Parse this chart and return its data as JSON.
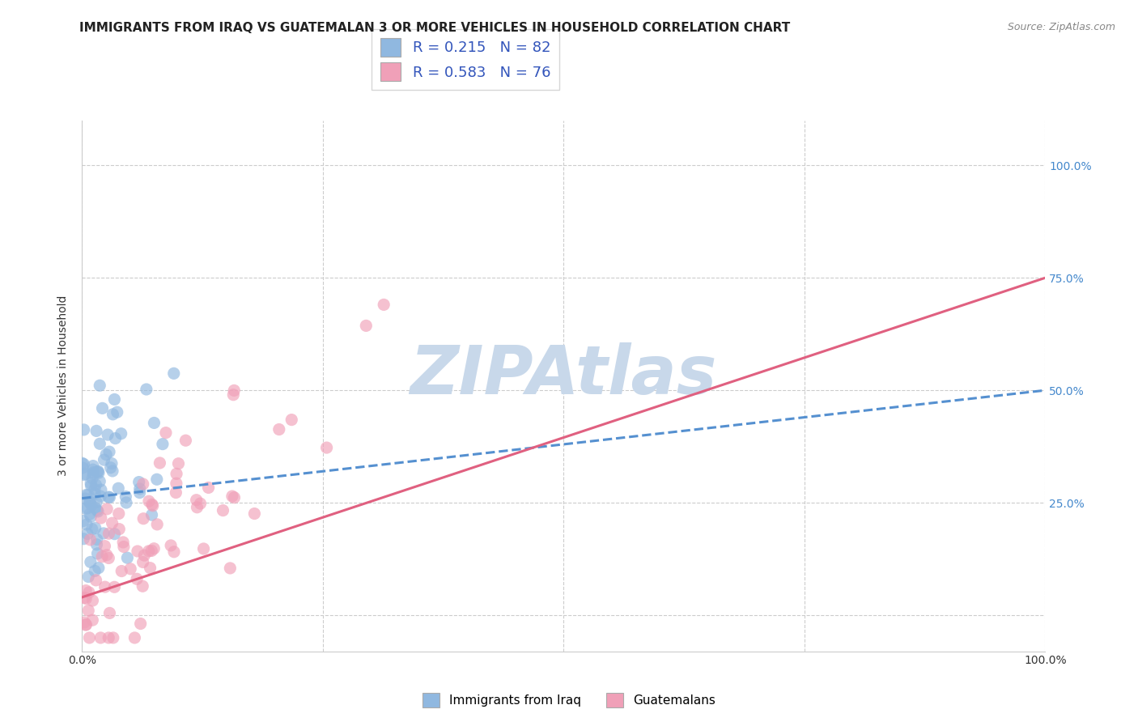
{
  "title": "IMMIGRANTS FROM IRAQ VS GUATEMALAN 3 OR MORE VEHICLES IN HOUSEHOLD CORRELATION CHART",
  "source_text": "Source: ZipAtlas.com",
  "ylabel": "3 or more Vehicles in Household",
  "xlim": [
    0.0,
    1.0
  ],
  "ylim": [
    -0.08,
    1.1
  ],
  "series": [
    {
      "name": "Immigrants from Iraq",
      "R": 0.215,
      "N": 82,
      "marker_color": "#90b8e0",
      "line_color": "#5590d0",
      "line_style": "dashed"
    },
    {
      "name": "Guatemalans",
      "R": 0.583,
      "N": 76,
      "marker_color": "#f0a0b8",
      "line_color": "#e06080",
      "line_style": "solid"
    }
  ],
  "iraq_trend": [
    0.26,
    0.5
  ],
  "guat_trend": [
    0.04,
    0.75
  ],
  "watermark": "ZIPAtlas",
  "watermark_color": "#c8d8ea",
  "background_color": "#ffffff",
  "grid_color": "#cccccc",
  "title_fontsize": 11,
  "axis_label_fontsize": 10,
  "tick_fontsize": 10,
  "legend_R_color": "#3355bb",
  "right_axis_color": "#4488cc",
  "seed": 7
}
